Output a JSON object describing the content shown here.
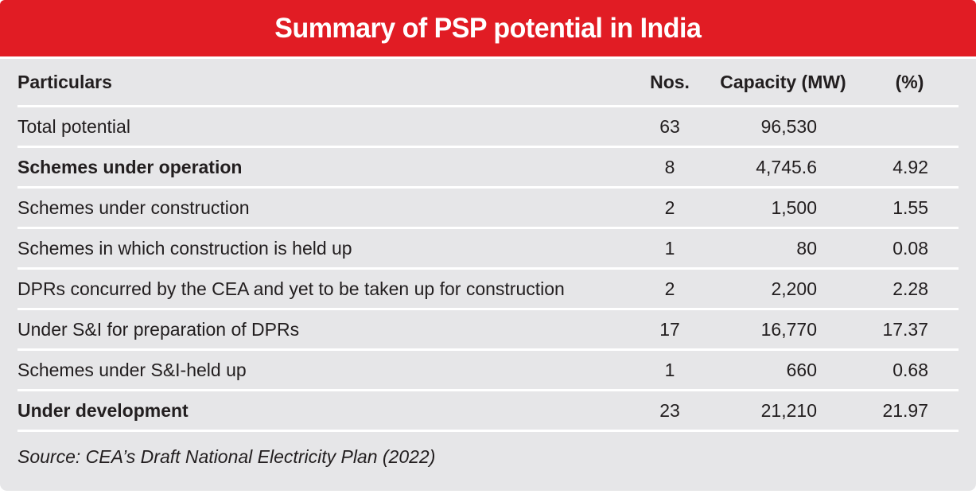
{
  "chart_data": {
    "type": "table",
    "title": "Summary of PSP potential in India",
    "columns": {
      "particulars": "Particulars",
      "nos": "Nos.",
      "capacity": "Capacity (MW)",
      "pct": "(%)"
    },
    "rows": [
      {
        "particulars": "Total potential",
        "nos": "63",
        "capacity": "96,530",
        "pct": "",
        "emphasis": false
      },
      {
        "particulars": "Schemes under operation",
        "nos": "8",
        "capacity": "4,745.6",
        "pct": "4.92",
        "emphasis": true
      },
      {
        "particulars": "Schemes under construction",
        "nos": "2",
        "capacity": "1,500",
        "pct": "1.55",
        "emphasis": false
      },
      {
        "particulars": "Schemes in which construction is held up",
        "nos": "1",
        "capacity": "80",
        "pct": "0.08",
        "emphasis": false
      },
      {
        "particulars": "DPRs concurred by the CEA and yet to be taken up for construction",
        "nos": "2",
        "capacity": "2,200",
        "pct": "2.28",
        "emphasis": false
      },
      {
        "particulars": "Under S&I for preparation of DPRs",
        "nos": "17",
        "capacity": "16,770",
        "pct": "17.37",
        "emphasis": false
      },
      {
        "particulars": "Schemes under S&I-held up",
        "nos": "1",
        "capacity": "660",
        "pct": "0.68",
        "emphasis": false
      },
      {
        "particulars": "Under development",
        "nos": "23",
        "capacity": "21,210",
        "pct": "21.97",
        "emphasis": true
      }
    ],
    "source": "Source: CEA’s Draft National Electricity Plan (2022)",
    "layout": {
      "legend": "none",
      "grid": "white row separators on gray panel"
    }
  },
  "colors": {
    "accent_red": "#e11c24",
    "panel_gray": "#e6e6e8",
    "separator_white": "#ffffff",
    "text": "#221e1f",
    "title_text": "#ffffff"
  }
}
